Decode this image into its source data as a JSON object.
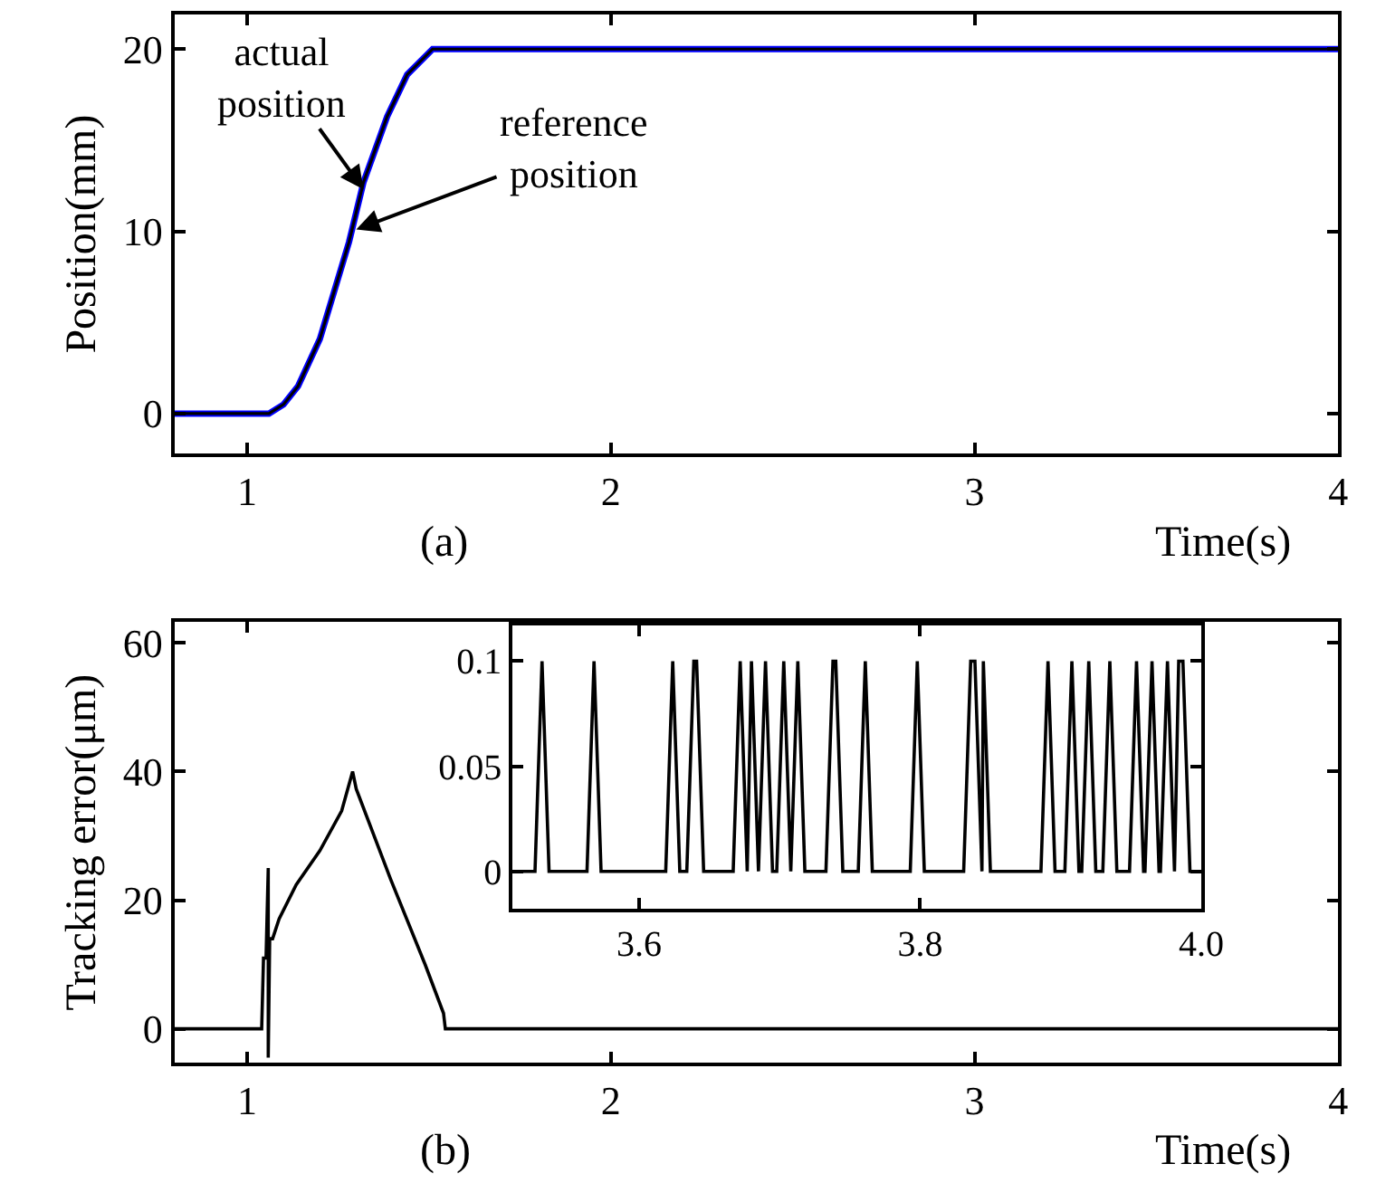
{
  "chart_data": [
    {
      "type": "line",
      "ylabel": "Position(mm)",
      "xlabel": "Time(s)",
      "xlim": [
        0.8,
        4.0
      ],
      "ylim": [
        -2.2,
        21.9
      ],
      "xticks": [
        1,
        2,
        3,
        4
      ],
      "yticks": [
        0,
        10,
        20
      ],
      "marker": "none",
      "line_style": "solid",
      "annotations": [
        "(a)",
        {
          "text": "actual\nposition",
          "x": 1.32,
          "y": 12.3
        },
        {
          "text": "reference\nposition",
          "x": 1.3,
          "y": 10.1
        }
      ],
      "series": [
        {
          "color": "#0000ff",
          "x": [
            0.8,
            1.06,
            1.1,
            1.14,
            1.2,
            1.28,
            1.32,
            1.385,
            1.44,
            1.51,
            4.0
          ],
          "values": [
            0,
            0,
            0.5,
            1.5,
            4.1,
            9.4,
            12.7,
            16.3,
            18.6,
            20,
            20
          ]
        },
        {
          "color": "#000000",
          "x": [
            0.8,
            1.06,
            1.1,
            1.14,
            1.2,
            1.28,
            1.32,
            1.385,
            1.44,
            1.51,
            4.0
          ],
          "values": [
            0,
            0,
            0.5,
            1.5,
            4.1,
            9.4,
            12.7,
            16.3,
            18.6,
            20,
            20
          ]
        }
      ]
    },
    {
      "type": "line",
      "ylabel": "Tracking error(μm)",
      "xlabel": "Time(s)",
      "xlim": [
        0.8,
        4.0
      ],
      "ylim": [
        -5.3,
        63.3
      ],
      "xticks": [
        1,
        2,
        3,
        4
      ],
      "yticks": [
        0,
        20,
        40,
        60
      ],
      "marker": "none",
      "line_style": "solid",
      "annotations": [
        "(b)"
      ],
      "series": [
        {
          "color": "#000000",
          "x": [
            0.8,
            1.04,
            1.045,
            1.052,
            1.058,
            1.058,
            1.062,
            1.07,
            1.088,
            1.135,
            1.2,
            1.26,
            1.29,
            1.3,
            1.395,
            1.49,
            1.54,
            1.545,
            4.0
          ],
          "values": [
            0,
            0,
            11,
            11,
            25,
            -4.5,
            14,
            14,
            17.1,
            22.4,
            27.7,
            33.9,
            40,
            37.3,
            23.2,
            9.9,
            2.4,
            0,
            0
          ]
        }
      ]
    },
    {
      "type": "line",
      "xlim": [
        3.51,
        4.0
      ],
      "ylim": [
        -0.018,
        0.117
      ],
      "xticks": [
        3.6,
        3.8,
        {
          "value": 4.0,
          "label": "4.0"
        }
      ],
      "yticks": [
        0,
        0.05,
        0.1
      ],
      "marker": "none",
      "line_style": "solid",
      "series": [
        {
          "color": "#000000",
          "x": [
            3.51,
            3.526,
            3.531,
            3.536,
            3.563,
            3.568,
            3.573,
            3.619,
            3.624,
            3.629,
            3.634,
            3.639,
            3.641,
            3.646,
            3.667,
            3.672,
            3.677,
            3.68,
            3.685,
            3.69,
            3.695,
            3.698,
            3.703,
            3.708,
            3.713,
            3.718,
            3.733,
            3.738,
            3.74,
            3.745,
            3.756,
            3.761,
            3.766,
            3.793,
            3.798,
            3.803,
            3.831,
            3.836,
            3.839,
            3.844,
            3.845,
            3.85,
            3.886,
            3.891,
            3.896,
            3.903,
            3.908,
            3.913,
            3.915,
            3.92,
            3.925,
            3.93,
            3.935,
            3.94,
            3.949,
            3.954,
            3.959,
            3.96,
            3.965,
            3.97,
            3.971,
            3.976,
            3.981,
            3.984,
            3.987,
            3.992,
            4.0
          ],
          "values": [
            0,
            0,
            0.1,
            0,
            0,
            0.1,
            0,
            0,
            0.1,
            0,
            0,
            0.1,
            0.1,
            0,
            0,
            0.1,
            0,
            0.1,
            0,
            0.1,
            0,
            0,
            0.1,
            0,
            0.1,
            0,
            0,
            0.1,
            0.1,
            0,
            0,
            0.1,
            0,
            0,
            0.1,
            0,
            0,
            0.1,
            0.1,
            0,
            0.1,
            0,
            0,
            0.1,
            0,
            0,
            0.1,
            0,
            0,
            0.1,
            0,
            0,
            0.1,
            0,
            0,
            0.1,
            0,
            0,
            0.1,
            0,
            0,
            0.1,
            0,
            0.1,
            0.1,
            0,
            0
          ]
        }
      ]
    }
  ]
}
